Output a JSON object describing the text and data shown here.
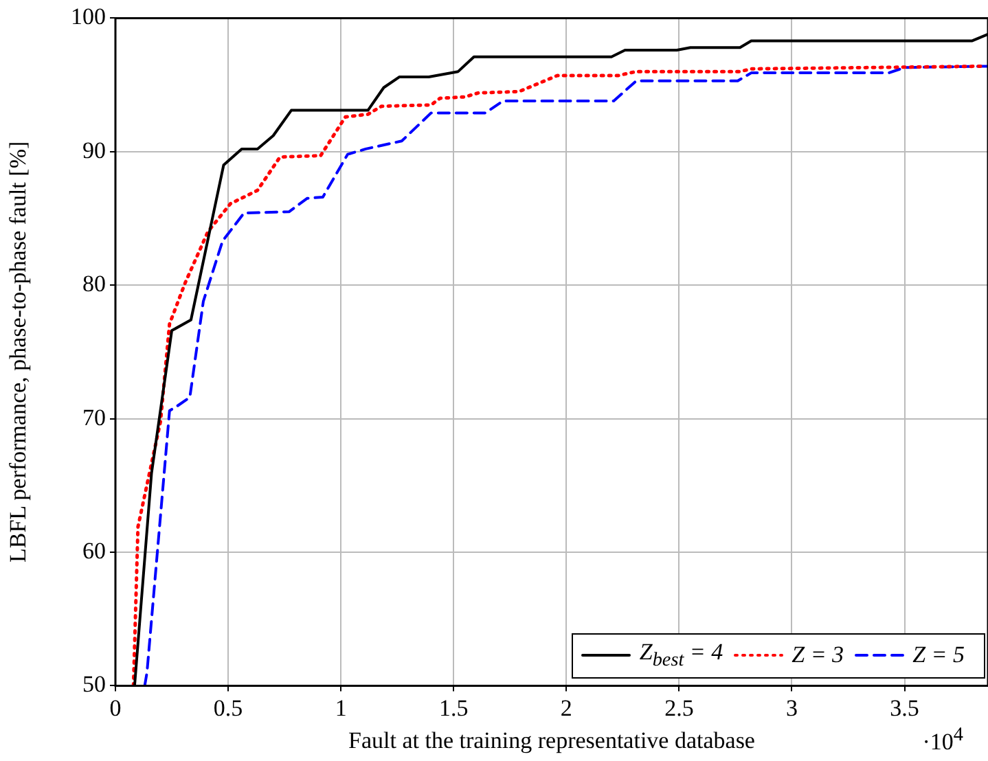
{
  "chart_data": {
    "type": "line",
    "xlabel": "Fault at the training representative database",
    "ylabel": "LBFL performance, phase-to-phase fault [%]",
    "annotations": [
      "·10$^{4}$"
    ],
    "xlim": [
      0,
      3.87
    ],
    "xticks": [
      0,
      0.5,
      1,
      1.5,
      2,
      2.5,
      3,
      3.5
    ],
    "ylim": [
      50,
      100
    ],
    "yticks": [
      50,
      60,
      70,
      80,
      90,
      100
    ],
    "grid": true,
    "legend": "bottom right",
    "marker": "none",
    "series": [
      {
        "name": "Z$_{best}$ = 4",
        "color": "#000000",
        "line_style": "solid",
        "x": [
          0.085,
          0.16,
          0.25,
          0.335,
          0.48,
          0.56,
          0.63,
          0.7,
          0.78,
          1.12,
          1.19,
          1.26,
          1.39,
          1.52,
          1.59,
          2.2,
          2.26,
          2.49,
          2.55,
          2.77,
          2.82,
          3.8,
          3.87
        ],
        "values": [
          50,
          65.9,
          76.6,
          77.4,
          89,
          90.2,
          90.2,
          91.2,
          93.1,
          93.1,
          94.8,
          95.6,
          95.6,
          96,
          97.1,
          97.1,
          97.6,
          97.6,
          97.8,
          97.8,
          98.3,
          98.3,
          98.8
        ]
      },
      {
        "name": "Z = 3",
        "color": "#ff0000",
        "line_style": "dotted",
        "x": [
          0.08,
          0.1,
          0.2,
          0.24,
          0.31,
          0.41,
          0.51,
          0.63,
          0.73,
          0.91,
          1.02,
          1.12,
          1.18,
          1.4,
          1.44,
          1.55,
          1.61,
          1.79,
          1.96,
          2.23,
          2.31,
          2.77,
          2.82,
          3.86
        ],
        "values": [
          50,
          61.9,
          69.8,
          77.1,
          80.2,
          84,
          86.1,
          87.1,
          89.6,
          89.7,
          92.6,
          92.8,
          93.4,
          93.5,
          94,
          94.1,
          94.4,
          94.5,
          95.7,
          95.7,
          96,
          96,
          96.2,
          96.4
        ]
      },
      {
        "name": "Z = 5",
        "color": "#0000ff",
        "line_style": "dashed",
        "x": [
          0.13,
          0.14,
          0.24,
          0.27,
          0.33,
          0.39,
          0.475,
          0.57,
          0.77,
          0.85,
          0.92,
          1.03,
          1.11,
          1.27,
          1.4,
          1.64,
          1.72,
          2.21,
          2.31,
          2.76,
          2.82,
          3.43,
          3.5,
          3.87
        ],
        "values": [
          50,
          51,
          70.6,
          70.9,
          71.6,
          78.8,
          83.3,
          85.4,
          85.5,
          86.5,
          86.6,
          89.8,
          90.2,
          90.8,
          92.9,
          92.9,
          93.8,
          93.8,
          95.3,
          95.3,
          95.9,
          95.9,
          96.3,
          96.4
        ]
      }
    ]
  }
}
